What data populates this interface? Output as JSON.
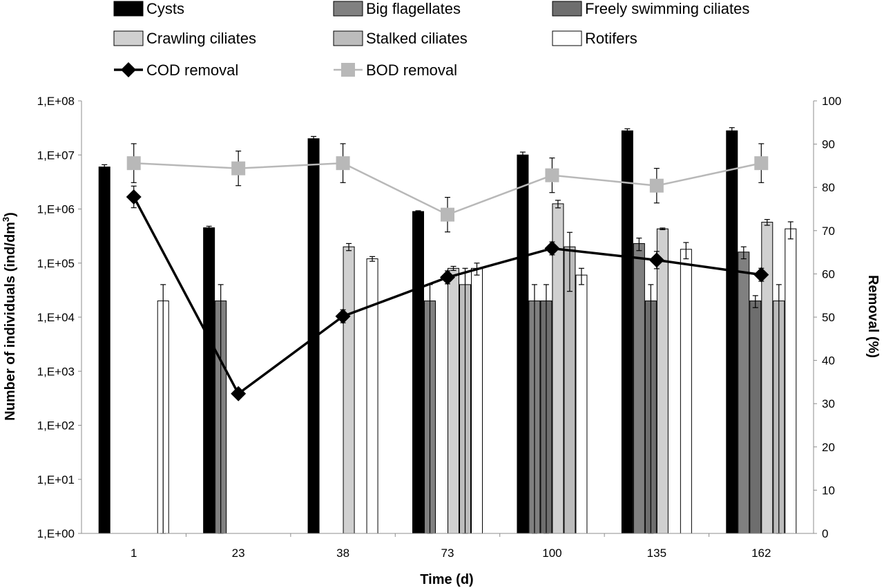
{
  "chart_data": {
    "type": "bar",
    "xlabel": "Time (d)",
    "ylabel_left": {
      "prefix": "Number of individuals (ind/dm",
      "sup": "3",
      "suffix": ")"
    },
    "ylabel_right": "Removal (%)",
    "yscale_left": "log",
    "ylim_left_exponents": [
      0,
      8
    ],
    "left_tick_labels": [
      "1,E+00",
      "1,E+01",
      "1,E+02",
      "1,E+03",
      "1,E+04",
      "1,E+05",
      "1,E+06",
      "1,E+07",
      "1,E+08"
    ],
    "ylim_right": [
      0,
      100
    ],
    "right_tick_labels": [
      "0",
      "10",
      "20",
      "30",
      "40",
      "50",
      "60",
      "70",
      "80",
      "90",
      "100"
    ],
    "categories": [
      "1",
      "23",
      "38",
      "73",
      "100",
      "135",
      "162"
    ],
    "legend_placement": "top",
    "bar_series": [
      {
        "name": "Cysts",
        "color": "#000000",
        "values": [
          6000000,
          450000,
          20000000,
          900000,
          10000000,
          28000000,
          28000000
        ],
        "errors": [
          600000,
          30000,
          2000000,
          30000,
          1300000,
          2500000,
          4000000
        ]
      },
      {
        "name": "Big flagellates",
        "color": "#808080",
        "values": [
          null,
          20000,
          null,
          20000,
          20000,
          230000,
          160000
        ],
        "errors": [
          null,
          20000,
          null,
          20000,
          20000,
          60000,
          40000
        ]
      },
      {
        "name": "Freely swimming ciliates",
        "color": "#6e6e6e",
        "values": [
          null,
          null,
          null,
          null,
          20000,
          20000,
          20000
        ],
        "errors": [
          null,
          null,
          null,
          null,
          20000,
          20000,
          5000
        ]
      },
      {
        "name": "Crawling ciliates",
        "color": "#d0d0d0",
        "values": [
          null,
          null,
          200000,
          80000,
          1250000,
          430000,
          570000
        ],
        "errors": [
          null,
          null,
          30000,
          7000,
          200000,
          15000,
          70000
        ]
      },
      {
        "name": "Stalked ciliates",
        "color": "#bcbcbc",
        "values": [
          null,
          null,
          null,
          40000,
          200000,
          null,
          20000
        ],
        "errors": [
          null,
          null,
          null,
          40000,
          170000,
          null,
          20000
        ]
      },
      {
        "name": "Rotifers",
        "color": "#ffffff",
        "values": [
          20000,
          null,
          120000,
          80000,
          60000,
          180000,
          430000
        ],
        "errors": [
          20000,
          null,
          12000,
          20000,
          20000,
          60000,
          150000
        ]
      }
    ],
    "line_series": [
      {
        "name": "COD removal",
        "color": "#000000",
        "marker": "diamond",
        "values": [
          77.8,
          32.3,
          50.2,
          59.2,
          65.9,
          63.2,
          59.8
        ],
        "errors": [
          2.5,
          0.5,
          1.5,
          1.5,
          1.5,
          2.0,
          1.5
        ]
      },
      {
        "name": "BOD removal",
        "color": "#b8b8b8",
        "marker": "square",
        "values": [
          85.6,
          84.4,
          85.6,
          73.7,
          82.8,
          80.4,
          85.6
        ],
        "errors": [
          4.5,
          4.0,
          4.5,
          4.0,
          4.0,
          4.0,
          4.5
        ]
      }
    ]
  }
}
